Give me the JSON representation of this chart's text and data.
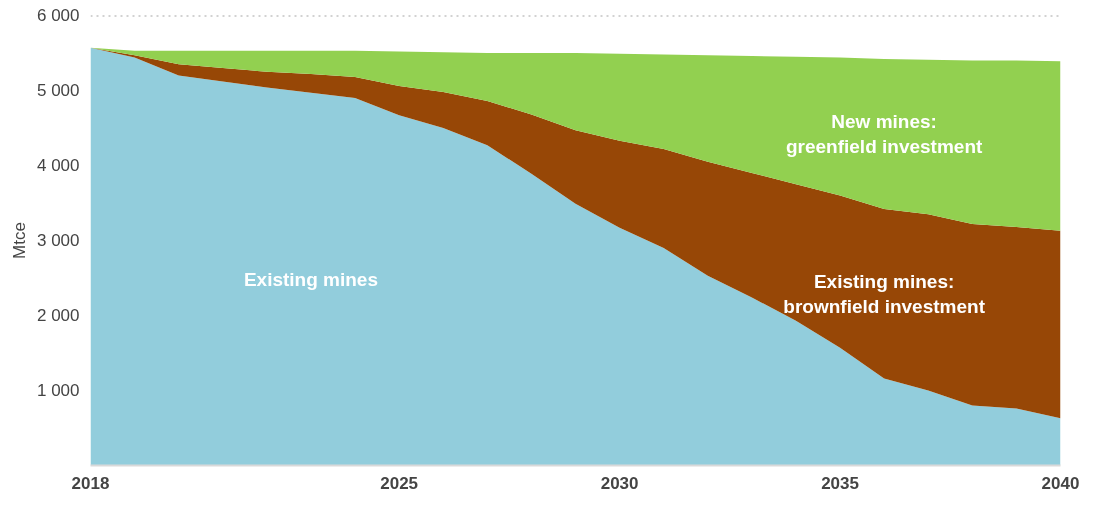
{
  "chart_data": {
    "type": "area",
    "stacked": true,
    "ylabel": "Mtce",
    "x": [
      2018,
      2019,
      2020,
      2021,
      2022,
      2023,
      2024,
      2025,
      2026,
      2027,
      2028,
      2029,
      2030,
      2031,
      2032,
      2033,
      2034,
      2035,
      2036,
      2037,
      2038,
      2039,
      2040
    ],
    "series": [
      {
        "name": "Existing mines",
        "color": "#92cddc",
        "values": [
          5570,
          5440,
          5200,
          5120,
          5040,
          4970,
          4900,
          4670,
          4500,
          4270,
          3890,
          3490,
          3170,
          2900,
          2530,
          2240,
          1930,
          1570,
          1160,
          1000,
          800,
          760,
          630
        ]
      },
      {
        "name": "Existing mines:\nbrownfield investment",
        "color": "#974706",
        "values": [
          0,
          30,
          150,
          180,
          210,
          250,
          280,
          390,
          480,
          590,
          790,
          980,
          1160,
          1320,
          1520,
          1660,
          1820,
          2030,
          2260,
          2350,
          2420,
          2420,
          2500
        ]
      },
      {
        "name": "New mines:\ngreenfield investment",
        "color": "#92d050",
        "values": [
          0,
          60,
          180,
          230,
          280,
          310,
          350,
          460,
          530,
          640,
          820,
          1030,
          1160,
          1260,
          1420,
          1560,
          1700,
          1840,
          2000,
          2060,
          2180,
          2220,
          2260
        ]
      }
    ],
    "xlim": [
      2018,
      2040
    ],
    "xticks": [
      2018,
      2025,
      2030,
      2035,
      2040
    ],
    "ylim": [
      0,
      6000
    ],
    "yticks": [
      {
        "value": 1000,
        "label": "1 000"
      },
      {
        "value": 2000,
        "label": "2 000"
      },
      {
        "value": 3000,
        "label": "3 000"
      },
      {
        "value": 4000,
        "label": "4 000"
      },
      {
        "value": 5000,
        "label": "5 000"
      },
      {
        "value": 6000,
        "label": "6 000"
      }
    ],
    "ref_lines": [
      {
        "axis": "y",
        "value": 6000,
        "label": null,
        "color": "#a6a6a6",
        "line_style": "dotted"
      }
    ],
    "grid": false
  }
}
